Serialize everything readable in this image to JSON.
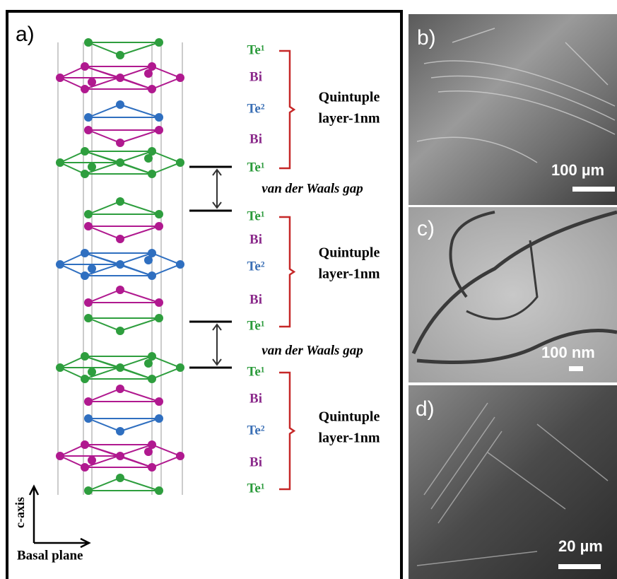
{
  "structure": {
    "label": "a)",
    "layers": [
      {
        "atoms": [
          "Te¹",
          "Bi",
          "Te²",
          "Bi",
          "Te¹"
        ],
        "caption": [
          "Quintuple",
          "layer-1nm"
        ]
      },
      {
        "atoms": [
          "Te¹",
          "Bi",
          "Te²",
          "Bi",
          "Te¹"
        ],
        "caption": [
          "Quintuple",
          "layer-1nm"
        ]
      },
      {
        "atoms": [
          "Te¹",
          "Bi",
          "Te²",
          "Bi",
          "Te¹"
        ],
        "caption": [
          "Quintuple",
          "layer-1nm"
        ]
      }
    ],
    "gaps": [
      "van der Waals gap",
      "van der Waals gap"
    ],
    "axes": {
      "vertical": "c-axis",
      "horizontal": "Basal plane"
    }
  },
  "micrographs": [
    {
      "label": "b)",
      "scale_bar": "100 µm"
    },
    {
      "label": "c)",
      "scale_bar": "100 nm"
    },
    {
      "label": "d)",
      "scale_bar": "20 µm"
    }
  ]
}
